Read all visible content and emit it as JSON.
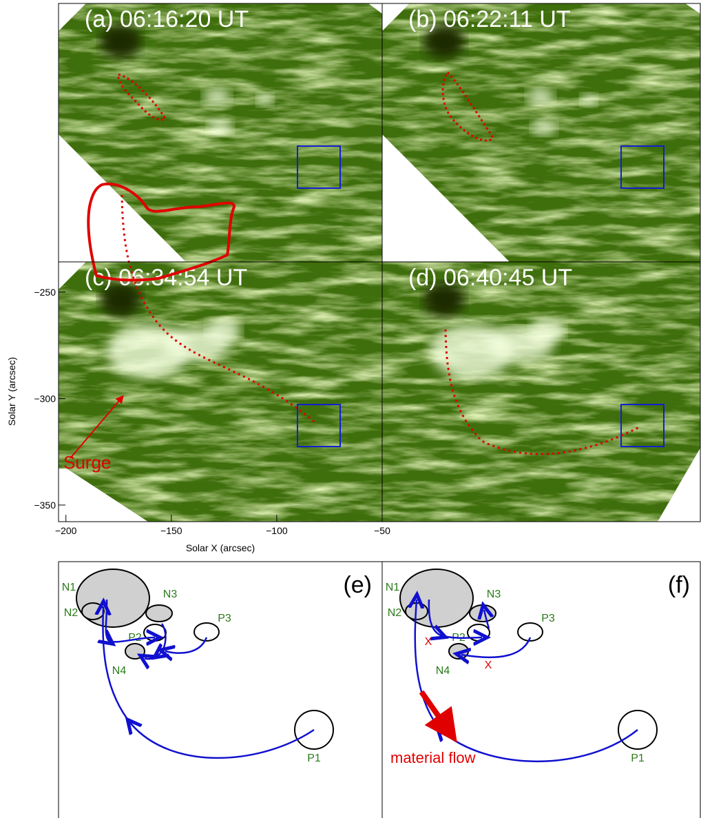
{
  "panels": [
    {
      "label": "(a)  06:16:20 UT"
    },
    {
      "label": "(b)  06:22:11 UT"
    },
    {
      "label": "(c)  06:34:54 UT"
    },
    {
      "label": "(d)  06:40:45 UT"
    }
  ],
  "axes": {
    "xlabel": "Solar X (arcsec)",
    "ylabel": "Solar Y (arcsec)",
    "xlim": [
      -203.5,
      -50
    ],
    "ylim": [
      -357.8,
      -235.8
    ],
    "xticks": [
      {
        "value": -200,
        "label": "−200"
      },
      {
        "value": -150,
        "label": "−150"
      },
      {
        "value": -100,
        "label": "−100"
      },
      {
        "value": -50,
        "label": "−50"
      }
    ],
    "yticks": [
      {
        "value": -250,
        "label": "−250"
      },
      {
        "value": -300,
        "label": "−300"
      },
      {
        "value": -350,
        "label": "−350"
      }
    ]
  },
  "annotation": "Surge",
  "diagrams": [
    {
      "label": "(e)",
      "nodes": [
        "N1",
        "N2",
        "N3",
        "P2",
        "P3",
        "N4",
        "P1"
      ]
    },
    {
      "label": "(f)",
      "nodes": [
        "N1",
        "N2",
        "N3",
        "P2",
        "P3",
        "N4",
        "P1"
      ],
      "annotation": "material flow",
      "marks": [
        "X",
        "X"
      ]
    }
  ]
}
